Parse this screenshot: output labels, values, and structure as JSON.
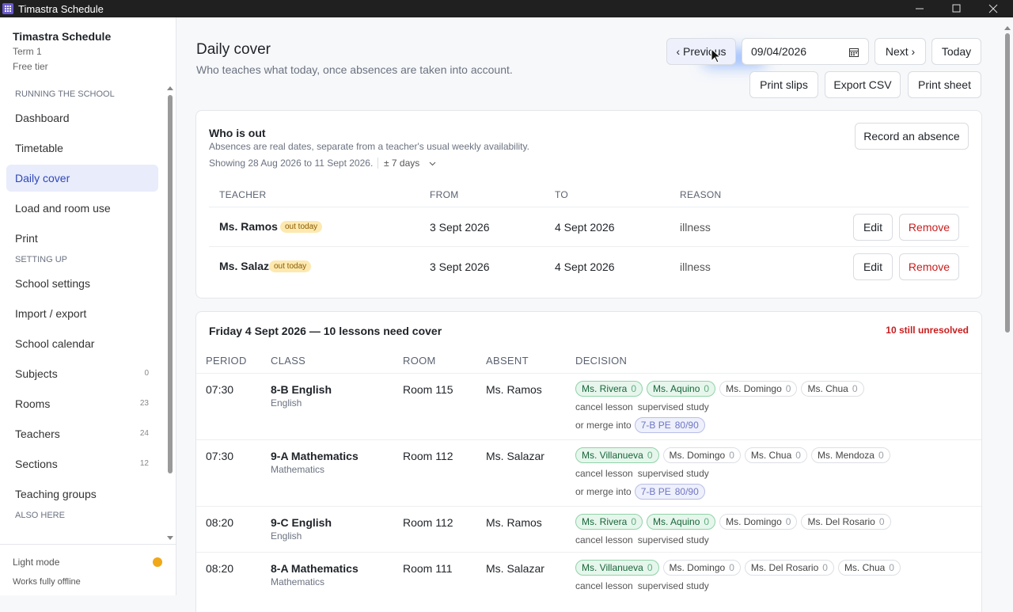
{
  "window": {
    "title": "Timastra Schedule"
  },
  "sidebar": {
    "app_name": "Timastra Schedule",
    "term": "Term 1",
    "tier": "Free tier",
    "sections": [
      {
        "heading": "RUNNING THE SCHOOL",
        "items": [
          {
            "label": "Dashboard"
          },
          {
            "label": "Timetable"
          },
          {
            "label": "Daily cover",
            "active": true
          },
          {
            "label": "Load and room use"
          },
          {
            "label": "Print"
          }
        ]
      },
      {
        "heading": "SETTING UP",
        "items": [
          {
            "label": "School settings"
          },
          {
            "label": "Import / export"
          },
          {
            "label": "School calendar"
          },
          {
            "label": "Subjects",
            "count": 0
          },
          {
            "label": "Rooms",
            "count": 23
          },
          {
            "label": "Teachers",
            "count": 24
          },
          {
            "label": "Sections",
            "count": 12
          },
          {
            "label": "Teaching groups"
          }
        ]
      },
      {
        "heading": "ALSO HERE",
        "items": []
      }
    ],
    "mode": "Light mode",
    "offline": "Works fully offline"
  },
  "header": {
    "title": "Daily cover",
    "subtitle": "Who teaches what today, once absences are taken into account.",
    "previous": "‹ Previous",
    "date": "09/04/2026",
    "next": "Next ›",
    "today": "Today",
    "actions": [
      "Print slips",
      "Export CSV",
      "Print sheet"
    ]
  },
  "absences": {
    "title": "Who is out",
    "description": "Absences are real dates, separate from a teacher's usual weekly availability.",
    "showing": "Showing 28 Aug 2026 to 11 Sept 2026.",
    "range": "± 7 days",
    "record": "Record an absence",
    "columns": [
      "TEACHER",
      "FROM",
      "TO",
      "REASON"
    ],
    "edit": "Edit",
    "remove": "Remove",
    "rows": [
      {
        "teacher": "Ms. Ramos",
        "badge": "out today",
        "from": "3 Sept 2026",
        "to": "4 Sept 2026",
        "reason": "illness"
      },
      {
        "teacher": "Ms. Salazar",
        "badge": "out today",
        "from": "3 Sept 2026",
        "to": "4 Sept 2026",
        "reason": "illness"
      }
    ]
  },
  "cover": {
    "title": "Friday 4 Sept 2026 — 10 lessons need cover",
    "unresolved": "10 still unresolved",
    "columns": [
      "PERIOD",
      "CLASS",
      "ROOM",
      "ABSENT",
      "DECISION"
    ],
    "options": [
      "cancel lesson",
      "supervised study"
    ],
    "merge_label": "or merge into",
    "rows": [
      {
        "period": "07:30",
        "class": "8-B English",
        "subject": "English",
        "room": "Room 115",
        "absent": "Ms. Ramos",
        "candidates": [
          {
            "name": "Ms. Rivera",
            "count": 0,
            "free": true
          },
          {
            "name": "Ms. Aquino",
            "count": 0,
            "free": true
          },
          {
            "name": "Ms. Domingo",
            "count": 0
          },
          {
            "name": "Ms. Chua",
            "count": 0
          }
        ],
        "merge": {
          "group": "7-B PE",
          "ratio": "80/90"
        }
      },
      {
        "period": "07:30",
        "class": "9-A Mathematics",
        "subject": "Mathematics",
        "room": "Room 112",
        "absent": "Ms. Salazar",
        "candidates": [
          {
            "name": "Ms. Villanueva",
            "count": 0,
            "free": true
          },
          {
            "name": "Ms. Domingo",
            "count": 0
          },
          {
            "name": "Ms. Chua",
            "count": 0
          },
          {
            "name": "Ms. Mendoza",
            "count": 0
          }
        ],
        "merge": {
          "group": "7-B PE",
          "ratio": "80/90"
        }
      },
      {
        "period": "08:20",
        "class": "9-C English",
        "subject": "English",
        "room": "Room 112",
        "absent": "Ms. Ramos",
        "candidates": [
          {
            "name": "Ms. Rivera",
            "count": 0,
            "free": true
          },
          {
            "name": "Ms. Aquino",
            "count": 0,
            "free": true
          },
          {
            "name": "Ms. Domingo",
            "count": 0
          },
          {
            "name": "Ms. Del Rosario",
            "count": 0
          }
        ]
      },
      {
        "period": "08:20",
        "class": "8-A Mathematics",
        "subject": "Mathematics",
        "room": "Room 111",
        "absent": "Ms. Salazar",
        "candidates": [
          {
            "name": "Ms. Villanueva",
            "count": 0,
            "free": true
          },
          {
            "name": "Ms. Domingo",
            "count": 0
          },
          {
            "name": "Ms. Del Rosario",
            "count": 0
          },
          {
            "name": "Ms. Chua",
            "count": 0
          }
        ]
      }
    ]
  }
}
